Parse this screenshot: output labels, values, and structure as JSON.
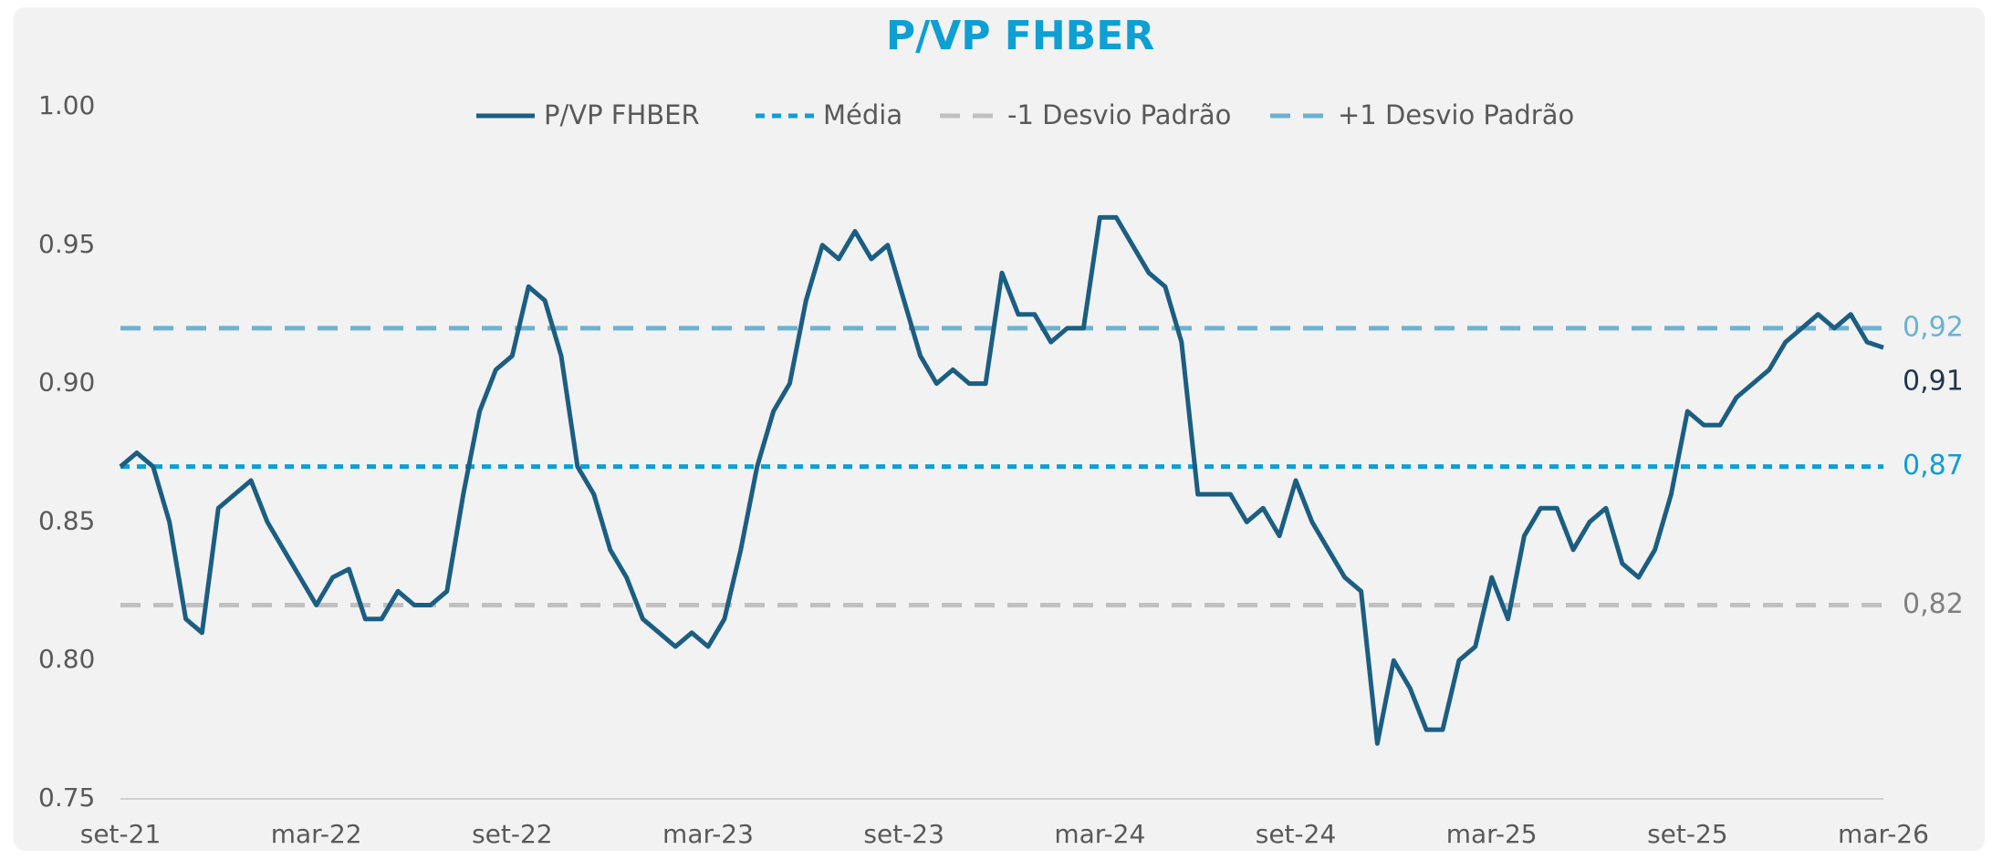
{
  "chart_data": {
    "type": "line",
    "title": "P/VP FHBER",
    "categories": [
      "set-21",
      null,
      null,
      null,
      null,
      null,
      null,
      null,
      null,
      null,
      null,
      null,
      "mar-22",
      null,
      null,
      null,
      null,
      null,
      null,
      null,
      null,
      null,
      null,
      null,
      "set-22",
      null,
      null,
      null,
      null,
      null,
      null,
      null,
      null,
      null,
      null,
      null,
      "mar-23",
      null,
      null,
      null,
      null,
      null,
      null,
      null,
      null,
      null,
      null,
      null,
      "set-23",
      null,
      null,
      null,
      null,
      null,
      null,
      null,
      null,
      null,
      null,
      null,
      "mar-24",
      null,
      null,
      null,
      null,
      null,
      null,
      null,
      null,
      null,
      null,
      null,
      "set-24",
      null,
      null,
      null,
      null,
      null,
      null,
      null,
      null,
      null,
      null,
      null,
      "mar-25",
      null,
      null,
      null,
      null,
      null,
      null,
      null,
      null,
      null,
      null,
      null,
      "set-25",
      null,
      null,
      null,
      null,
      null,
      null,
      null,
      null,
      null,
      null,
      null,
      "mar-26"
    ],
    "series": [
      {
        "name": "P/VP FHBER",
        "color": "#1b5e82",
        "values": [
          0.87,
          0.875,
          0.87,
          0.85,
          0.815,
          0.81,
          0.855,
          0.86,
          0.865,
          0.85,
          0.84,
          0.83,
          0.82,
          0.83,
          0.833,
          0.815,
          0.815,
          0.825,
          0.82,
          0.82,
          0.825,
          0.86,
          0.89,
          0.905,
          0.91,
          0.935,
          0.93,
          0.91,
          0.87,
          0.86,
          0.84,
          0.83,
          0.815,
          0.81,
          0.805,
          0.81,
          0.805,
          0.815,
          0.84,
          0.87,
          0.89,
          0.9,
          0.93,
          0.95,
          0.945,
          0.955,
          0.945,
          0.95,
          0.93,
          0.91,
          0.9,
          0.905,
          0.9,
          0.9,
          0.94,
          0.925,
          0.925,
          0.915,
          0.92,
          0.92,
          0.96,
          0.96,
          0.95,
          0.94,
          0.935,
          0.915,
          0.86,
          0.86,
          0.86,
          0.85,
          0.855,
          0.845,
          0.865,
          0.85,
          0.84,
          0.83,
          0.825,
          0.77,
          0.8,
          0.79,
          0.775,
          0.775,
          0.8,
          0.805,
          0.83,
          0.815,
          0.845,
          0.855,
          0.855,
          0.84,
          0.85,
          0.855,
          0.835,
          0.83,
          0.84,
          0.86,
          0.89,
          0.885,
          0.885,
          0.895,
          0.9,
          0.905,
          0.915,
          0.92,
          0.925,
          0.92,
          0.925,
          0.915,
          0.913
        ],
        "end_label": "0,91"
      }
    ],
    "reference_lines": [
      {
        "name": "Média",
        "color": "#0e9fd3",
        "value": 0.87,
        "value_label": "0,87"
      },
      {
        "name": "-1 Desvio Padrão",
        "color": "#c0c0c0",
        "value": 0.82,
        "value_label": "0,82"
      },
      {
        "name": "+1 Desvio Padrão",
        "color": "#6cb2d0",
        "value": 0.92,
        "value_label": "0,92"
      }
    ],
    "ylim": [
      0.75,
      1.0
    ],
    "yticks": [
      0.75,
      {
        "value": 0.8,
        "label": "0.80"
      },
      0.85,
      {
        "value": 0.9,
        "label": "0.90"
      },
      0.95,
      {
        "value": 1.0,
        "label": "1.00"
      }
    ],
    "legend": "top"
  }
}
